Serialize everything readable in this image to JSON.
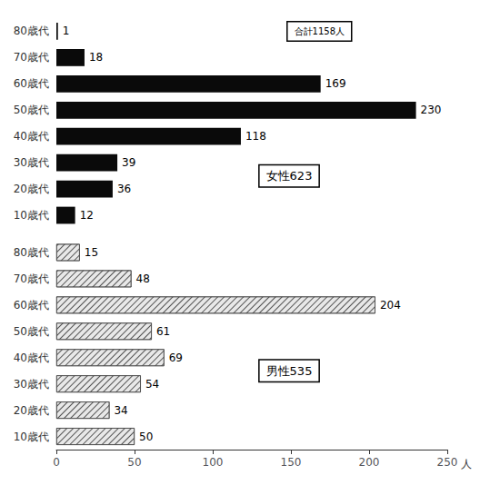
{
  "chart_data": [
    {
      "type": "bar",
      "orientation": "horizontal",
      "categories": [
        "80歳代",
        "70歳代",
        "60歳代",
        "50歳代",
        "40歳代",
        "30歳代",
        "20歳代",
        "10歳代"
      ],
      "values": [
        1,
        18,
        169,
        230,
        118,
        39,
        36,
        12
      ],
      "color": "#0a0a0a",
      "xlim": [
        0,
        250
      ],
      "data_labels": true,
      "tick_labels": "y",
      "annotations": [
        "女性623",
        "合計1158人"
      ]
    },
    {
      "type": "bar",
      "orientation": "horizontal",
      "categories": [
        "80歳代",
        "70歳代",
        "60歳代",
        "50歳代",
        "40歳代",
        "30歳代",
        "20歳代",
        "10歳代"
      ],
      "values": [
        15,
        48,
        204,
        61,
        69,
        54,
        34,
        50
      ],
      "color": "#e8e8e8",
      "xlim": [
        0,
        250
      ],
      "xticks": [
        0,
        50,
        100,
        150,
        200,
        250
      ],
      "xlabel": "人",
      "data_labels": true,
      "annotations": [
        "男性535"
      ]
    }
  ]
}
